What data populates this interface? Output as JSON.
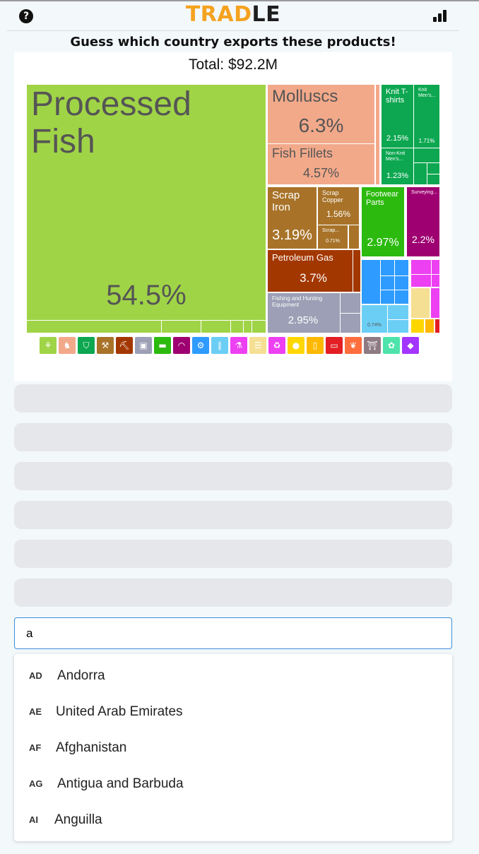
{
  "header": {
    "logo_left": "TRAD",
    "logo_right": "LE",
    "help_icon": "question-circle-icon",
    "stats_icon": "bar-chart-icon"
  },
  "prompt": "Guess which country exports these products!",
  "total": "Total: $92.2M",
  "treemap": {
    "processed_fish": {
      "name": "Processed Fish",
      "value": "54.5%"
    },
    "molluscs": {
      "name": "Molluscs",
      "value": "6.3%"
    },
    "fish_fillets": {
      "name": "Fish Fillets",
      "value": "4.57%"
    },
    "knit_tshirts": {
      "name": "Knit T-shirts",
      "value": "2.15%"
    },
    "knit_mens": {
      "name": "Knit Men's...",
      "value": "1.71%"
    },
    "nonknit_mens": {
      "name": "Non-Knit Men's...",
      "value": "1.23%"
    },
    "scrap_iron": {
      "name": "Scrap Iron",
      "value": "3.19%"
    },
    "scrap_copper": {
      "name": "Scrap Copper",
      "value": "1.56%"
    },
    "scrap_other": {
      "name": "Scrap...",
      "value": "0.71%"
    },
    "footwear_parts": {
      "name": "Footwear Parts",
      "value": "2.97%"
    },
    "surveying": {
      "name": "Surveying...",
      "value": "2.2%"
    },
    "petroleum_gas": {
      "name": "Petroleum Gas",
      "value": "3.7%"
    },
    "fishing_equipment": {
      "name": "Fishing and Hunting Equipment",
      "value": "2.95%"
    },
    "small_blue": {
      "value": "0.74%"
    }
  },
  "colors": {
    "animal": "#a0d447",
    "animal_products": "#f2a98a",
    "textiles": "#0ca750",
    "metals": "#a87329",
    "minerals": "#a33700",
    "machines": "#2d9bff",
    "chemicals": "#ed40f2",
    "instruments": "#9e0071",
    "footwear": "#2cba0f",
    "misc": "#9c9fb5",
    "transport": "#6bcef5",
    "paper": "#f5df93",
    "vegetable": "#fed700",
    "plastics": "#e31e24",
    "arts": "#d7beab"
  },
  "category_icons": [
    {
      "name": "wheat-icon",
      "glyph": "⚘",
      "color": "#a0d447"
    },
    {
      "name": "animal-icon",
      "glyph": "♞",
      "color": "#f2a98a"
    },
    {
      "name": "shirt-icon",
      "glyph": "⛉",
      "color": "#0ca750"
    },
    {
      "name": "anvil-icon",
      "glyph": "⚒",
      "color": "#a87329"
    },
    {
      "name": "pickaxe-icon",
      "glyph": "⛏",
      "color": "#a33700"
    },
    {
      "name": "box-icon",
      "glyph": "▣",
      "color": "#9c9fb5"
    },
    {
      "name": "shoe-icon",
      "glyph": "▬",
      "color": "#2cba0f"
    },
    {
      "name": "gauge-icon",
      "glyph": "◠",
      "color": "#9e0071"
    },
    {
      "name": "gear-icon",
      "glyph": "⚙",
      "color": "#2d9bff"
    },
    {
      "name": "road-icon",
      "glyph": "∥",
      "color": "#6bcef5"
    },
    {
      "name": "flask-icon",
      "glyph": "⚗",
      "color": "#ed40f2"
    },
    {
      "name": "paper-icon",
      "glyph": "☰",
      "color": "#f5df93"
    },
    {
      "name": "recycle-icon",
      "glyph": "♻",
      "color": "#ed40f2"
    },
    {
      "name": "fruit-icon",
      "glyph": "●",
      "color": "#fed700"
    },
    {
      "name": "bottle-icon",
      "glyph": "▯",
      "color": "#ffb800"
    },
    {
      "name": "plastic-icon",
      "glyph": "▭",
      "color": "#e31e24"
    },
    {
      "name": "leaf-icon",
      "glyph": "❦",
      "color": "#ff6e3c"
    },
    {
      "name": "easel-icon",
      "glyph": "⛩",
      "color": "#8d7a82"
    },
    {
      "name": "hide-icon",
      "glyph": "✿",
      "color": "#4fe3ac"
    },
    {
      "name": "diamond-icon",
      "glyph": "◆",
      "color": "#a335ff"
    }
  ],
  "search": {
    "value": "a"
  },
  "options": [
    {
      "code": "AD",
      "name": "Andorra"
    },
    {
      "code": "AE",
      "name": "United Arab Emirates"
    },
    {
      "code": "AF",
      "name": "Afghanistan"
    },
    {
      "code": "AG",
      "name": "Antigua and Barbuda"
    },
    {
      "code": "AI",
      "name": "Anguilla"
    }
  ]
}
